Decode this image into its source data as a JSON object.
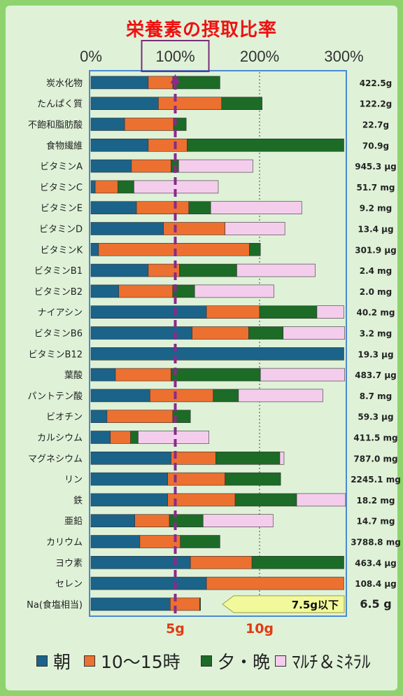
{
  "chart_data": {
    "type": "bar",
    "stacked": true,
    "orientation": "horizontal",
    "title": "栄養素の摂取比率",
    "x_tick_labels": [
      "0%",
      "100%",
      "200%",
      "300%"
    ],
    "xlim": [
      0,
      300
    ],
    "reference_line": {
      "value": 100,
      "style": "dashed",
      "color": "#8a2a8a"
    },
    "secondary_labels": [
      {
        "text": "5g",
        "value": 100
      },
      {
        "text": "10g",
        "value": 200
      }
    ],
    "categories": [
      "炭水化物",
      "たんぱく質",
      "不飽和脂肪酸",
      "食物繊維",
      "ビタミンA",
      "ビタミンC",
      "ビタミンE",
      "ビタミンD",
      "ビタミンK",
      "ビタミンB1",
      "ビタミンB2",
      "ナイアシン",
      "ビタミンB6",
      "ビタミンB12",
      "葉酸",
      "パントテン酸",
      "ビオチン",
      "カルシウム",
      "マグネシウム",
      "リン",
      "鉄",
      "亜鉛",
      "カリウム",
      "ヨウ素",
      "セレン",
      "Na(食塩相当)"
    ],
    "totals": [
      "422.5g",
      "122.2g",
      "22.7g",
      "70.9g",
      "945.3 μg",
      "51.7 mg",
      "9.2 mg",
      "13.4 μg",
      "301.9 μg",
      "2.4 mg",
      "2.0 mg",
      "40.2 mg",
      "3.2 mg",
      "19.3 μg",
      "483.7 μg",
      "8.7 mg",
      "59.3 μg",
      "411.5 mg",
      "787.0 mg",
      "2245.1 mg",
      "18.2 mg",
      "14.7 mg",
      "3788.8 mg",
      "463.4 μg",
      "108.4 μg",
      "6.5 g"
    ],
    "series": [
      {
        "name": "朝",
        "color": "#1b6389",
        "values": [
          68,
          80,
          40,
          68,
          48,
          5,
          54,
          86,
          9,
          68,
          33,
          137,
          120,
          300,
          29,
          70,
          19,
          23,
          95,
          91,
          91,
          52,
          58,
          118,
          137,
          94
        ]
      },
      {
        "name": "10～15時",
        "color": "#ec7030",
        "values": [
          29,
          75,
          58,
          46,
          47,
          27,
          62,
          73,
          179,
          37,
          64,
          63,
          67,
          0,
          66,
          75,
          78,
          24,
          53,
          68,
          80,
          41,
          48,
          73,
          163,
          35
        ]
      },
      {
        "name": "夕・晩",
        "color": "#1c6b27",
        "values": [
          56,
          48,
          15,
          186,
          9,
          19,
          26,
          0,
          13,
          68,
          26,
          68,
          41,
          0,
          106,
          30,
          21,
          9,
          76,
          66,
          73,
          40,
          47,
          109,
          0,
          1
        ]
      },
      {
        "name": "ﾏﾙﾁ＆ﾐﾈﾗﾙ",
        "color": "#f4cdec",
        "values": [
          0,
          0,
          0,
          0,
          88,
          100,
          108,
          71,
          0,
          93,
          94,
          32,
          73,
          0,
          100,
          100,
          0,
          84,
          5,
          0,
          58,
          83,
          0,
          0,
          0,
          0
        ]
      }
    ],
    "annotation": {
      "text": "7.5g以下",
      "row": "Na(食塩相当)"
    }
  }
}
